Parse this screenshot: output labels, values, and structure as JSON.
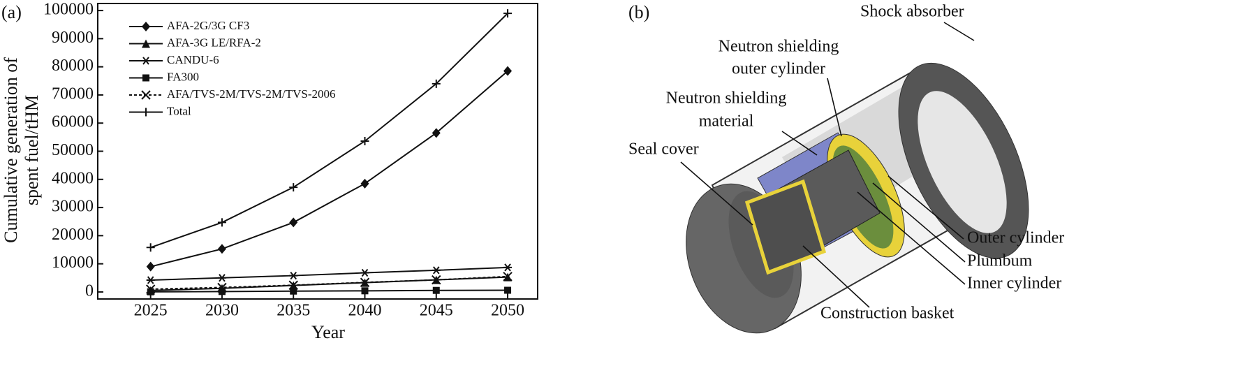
{
  "panel_labels": [
    "(a)",
    "(b)"
  ],
  "chart_data": {
    "type": "line",
    "xlabel": "Year",
    "ylabel": [
      "Cumulative generation of",
      "spent fuel/tHM"
    ],
    "x": [
      2025,
      2030,
      2035,
      2040,
      2045,
      2050
    ],
    "xlim": [
      2021.3,
      2052.1
    ],
    "xticks": [
      2025,
      2030,
      2035,
      2040,
      2045,
      2050
    ],
    "ylim": [
      -2500,
      102500
    ],
    "yticks": [
      0,
      10000,
      20000,
      30000,
      40000,
      50000,
      60000,
      70000,
      80000,
      90000,
      100000
    ],
    "legend": "upper left",
    "series": [
      {
        "name": "AFA-2G/3G CF3",
        "color": "#111111",
        "marker": "diamond",
        "dash": false,
        "values": [
          9000,
          15300,
          24700,
          38500,
          56500,
          78500
        ]
      },
      {
        "name": "AFA-3G LE/RFA-2",
        "color": "#111111",
        "marker": "triangle",
        "dash": false,
        "values": [
          500,
          1300,
          2300,
          3300,
          4300,
          5300
        ]
      },
      {
        "name": "CANDU-6",
        "color": "#111111",
        "marker": "asterisk",
        "dash": false,
        "values": [
          4200,
          5000,
          5800,
          6800,
          7700,
          8700
        ]
      },
      {
        "name": "FA300",
        "color": "#111111",
        "marker": "square",
        "dash": false,
        "values": [
          50,
          150,
          300,
          400,
          550,
          600
        ]
      },
      {
        "name": "AFA/TVS-2M/TVS-2M/TVS-2006",
        "color": "#111111",
        "marker": "x",
        "dash": true,
        "values": [
          1000,
          1600,
          2400,
          3400,
          4300,
          5500
        ]
      },
      {
        "name": "Total",
        "color": "#111111",
        "marker": "plus",
        "dash": false,
        "values": [
          15800,
          24700,
          37200,
          53600,
          74000,
          99000
        ]
      }
    ]
  },
  "diagram": {
    "labels": [
      {
        "lines": [
          "Shock absorber"
        ]
      },
      {
        "lines": [
          "Neutron shielding",
          "outer cylinder"
        ]
      },
      {
        "lines": [
          "Neutron shielding",
          "material"
        ]
      },
      {
        "lines": [
          "Seal cover"
        ]
      },
      {
        "lines": [
          "Outer cylinder"
        ]
      },
      {
        "lines": [
          "Plumbum"
        ]
      },
      {
        "lines": [
          "Inner cylinder"
        ]
      },
      {
        "lines": [
          "Construction basket"
        ]
      }
    ]
  }
}
